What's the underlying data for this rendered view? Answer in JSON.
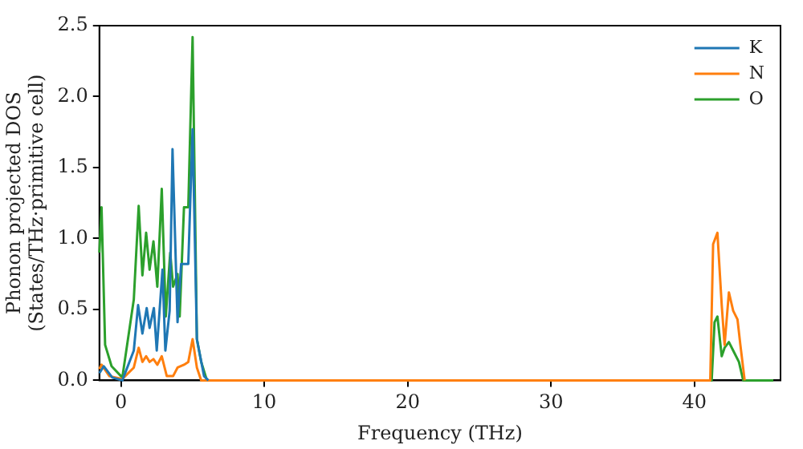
{
  "chart_data": {
    "type": "line",
    "xlabel": "Frequency (THz)",
    "ylabel": "Phonon projected DOS\n(States/THz·primitive cell)",
    "xlim": [
      -1.5,
      46
    ],
    "xticks": [
      0,
      10,
      20,
      30,
      40
    ],
    "ylim": [
      0,
      2.5
    ],
    "yticks": [
      {
        "value": 0,
        "label": "0.0"
      },
      {
        "value": 0.5,
        "label": "0.5"
      },
      {
        "value": 1,
        "label": "1.0"
      },
      {
        "value": 1.5,
        "label": "1.5"
      },
      {
        "value": 2,
        "label": "2.0"
      },
      {
        "value": 2.5,
        "label": "2.5"
      }
    ],
    "grid": false,
    "legend": "top right",
    "marker": "none",
    "line_style": "solid",
    "series": [
      {
        "name": "K",
        "color": "#1f77b4",
        "x": [
          -1.5,
          -1.2,
          -0.6,
          0.1,
          0.9,
          1.2,
          1.5,
          1.8,
          2.0,
          2.3,
          2.5,
          2.9,
          3.1,
          3.4,
          3.6,
          3.95,
          4.2,
          4.7,
          5.0,
          5.3,
          5.8,
          6.1
        ],
        "values": [
          0.05,
          0.1,
          0.02,
          0,
          0.21,
          0.53,
          0.33,
          0.51,
          0.37,
          0.51,
          0.21,
          0.78,
          0.21,
          0.49,
          1.63,
          0.41,
          0.82,
          0.82,
          1.77,
          0.29,
          0.03,
          0
        ]
      },
      {
        "name": "N",
        "color": "#ff7f0e",
        "x": [
          -1.5,
          -1.35,
          -0.8,
          0.1,
          0.9,
          1.24,
          1.5,
          1.76,
          2.0,
          2.27,
          2.54,
          2.85,
          3.2,
          3.64,
          3.95,
          4.4,
          4.7,
          5.0,
          5.3,
          5.6,
          41.1,
          41.3,
          41.6,
          41.9,
          42.1,
          42.4,
          42.7,
          43.0,
          43.2,
          43.5
        ],
        "values": [
          0.08,
          0.11,
          0.03,
          0.01,
          0.09,
          0.23,
          0.13,
          0.17,
          0.13,
          0.15,
          0.11,
          0.17,
          0.03,
          0.03,
          0.09,
          0.11,
          0.13,
          0.29,
          0.09,
          0,
          0,
          0.96,
          1.04,
          0.53,
          0.25,
          0.62,
          0.49,
          0.43,
          0.25,
          0
        ]
      },
      {
        "name": "O",
        "color": "#2ca02c",
        "x": [
          -1.5,
          -1.35,
          -1.1,
          -0.65,
          0.1,
          0.9,
          1.24,
          1.5,
          1.76,
          2.0,
          2.27,
          2.54,
          2.85,
          3.13,
          3.44,
          3.64,
          3.95,
          4.1,
          4.4,
          4.7,
          5.0,
          5.3,
          5.6,
          6.0,
          41.2,
          41.4,
          41.6,
          41.9,
          42.1,
          42.4,
          42.7,
          43.1,
          43.4,
          45.5
        ],
        "values": [
          0.9,
          1.22,
          0.25,
          0.1,
          0.02,
          0.57,
          1.23,
          0.74,
          1.04,
          0.78,
          0.98,
          0.66,
          1.35,
          0.45,
          0.9,
          0.66,
          0.75,
          0.45,
          1.22,
          1.22,
          2.42,
          0.29,
          0.13,
          0,
          0,
          0.41,
          0.45,
          0.17,
          0.23,
          0.27,
          0.21,
          0.13,
          0,
          0
        ]
      }
    ]
  }
}
